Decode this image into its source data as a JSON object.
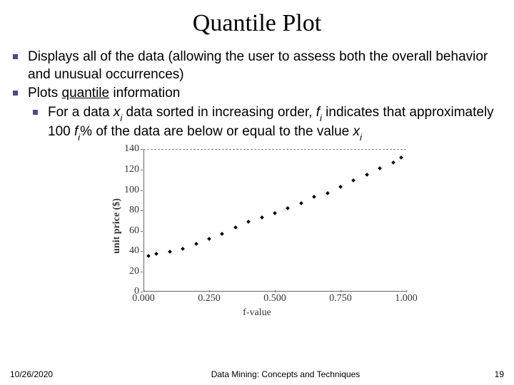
{
  "title": "Quantile Plot",
  "bullets": {
    "b1": "Displays all of the data (allowing the user to assess both the overall behavior and unusual occurrences)",
    "b2_pre": "Plots ",
    "b2_link": "quantile",
    "b2_post": " information",
    "b3_a": "For a data ",
    "b3_x": "x",
    "b3_i": "i",
    "b3_b": " data sorted in increasing order, ",
    "b3_f": "f",
    "b3_c": " indicates that approximately 100 ",
    "b3_d": "% of the data are below or equal to the value ",
    "b3_x2": "x",
    "b3_i2": "i"
  },
  "chart": {
    "ylabel": "unit price ($)",
    "xlabel": "f-value",
    "ylim": [
      0,
      140
    ],
    "xlim": [
      0.0,
      1.0
    ],
    "ytick_step": 20,
    "xticks": [
      0.0,
      0.25,
      0.5,
      0.75,
      1.0
    ],
    "xtick_labels": [
      "0.000",
      "0.250",
      "0.500",
      "0.750",
      "1.000"
    ],
    "ytick_labels": [
      "0",
      "20",
      "40",
      "60",
      "80",
      "100",
      "120",
      "140"
    ],
    "point_color": "#000000",
    "axis_color": "#666666",
    "grid_color": "#888888",
    "background_color": "#ffffff",
    "data": [
      {
        "f": 0.02,
        "y": 38
      },
      {
        "f": 0.05,
        "y": 40
      },
      {
        "f": 0.1,
        "y": 42
      },
      {
        "f": 0.15,
        "y": 45
      },
      {
        "f": 0.2,
        "y": 50
      },
      {
        "f": 0.25,
        "y": 55
      },
      {
        "f": 0.3,
        "y": 60
      },
      {
        "f": 0.35,
        "y": 66
      },
      {
        "f": 0.4,
        "y": 72
      },
      {
        "f": 0.45,
        "y": 76
      },
      {
        "f": 0.5,
        "y": 80
      },
      {
        "f": 0.55,
        "y": 85
      },
      {
        "f": 0.6,
        "y": 90
      },
      {
        "f": 0.65,
        "y": 96
      },
      {
        "f": 0.7,
        "y": 100
      },
      {
        "f": 0.75,
        "y": 106
      },
      {
        "f": 0.8,
        "y": 112
      },
      {
        "f": 0.85,
        "y": 118
      },
      {
        "f": 0.9,
        "y": 124
      },
      {
        "f": 0.95,
        "y": 130
      },
      {
        "f": 0.98,
        "y": 135
      }
    ]
  },
  "footer": {
    "date": "10/26/2020",
    "center": "Data Mining: Concepts and Techniques",
    "page": "19"
  }
}
